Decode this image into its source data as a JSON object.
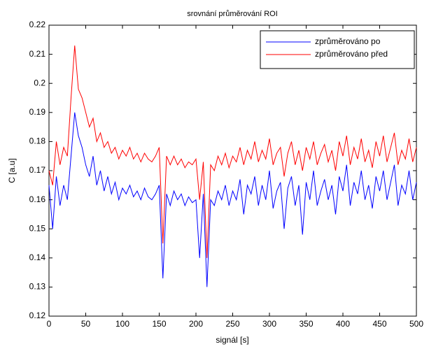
{
  "chart_data": {
    "type": "line",
    "title": "srovnání průměrování ROI",
    "x_label": "signál [s]",
    "y_label": "C [a.u]",
    "xlim": [
      0,
      500
    ],
    "xticks": [
      0,
      50,
      100,
      150,
      200,
      250,
      300,
      350,
      400,
      450,
      500
    ],
    "ylim": [
      0.12,
      0.22
    ],
    "yticks": [
      0.12,
      0.13,
      0.14,
      0.15,
      0.16,
      0.17,
      0.18,
      0.19,
      0.2,
      0.21,
      0.22
    ],
    "legend": "upper right",
    "x": [
      0,
      5,
      10,
      15,
      20,
      25,
      30,
      35,
      40,
      45,
      50,
      55,
      60,
      65,
      70,
      75,
      80,
      85,
      90,
      95,
      100,
      105,
      110,
      115,
      120,
      125,
      130,
      135,
      140,
      145,
      150,
      155,
      160,
      165,
      170,
      175,
      180,
      185,
      190,
      195,
      200,
      205,
      210,
      215,
      220,
      225,
      230,
      235,
      240,
      245,
      250,
      255,
      260,
      265,
      270,
      275,
      280,
      285,
      290,
      295,
      300,
      305,
      310,
      315,
      320,
      325,
      330,
      335,
      340,
      345,
      350,
      355,
      360,
      365,
      370,
      375,
      380,
      385,
      390,
      395,
      400,
      405,
      410,
      415,
      420,
      425,
      430,
      435,
      440,
      445,
      450,
      455,
      460,
      465,
      470,
      475,
      480,
      485,
      490,
      495,
      500
    ],
    "series": [
      {
        "name": "zprůměrováno po",
        "color": "#0000ff",
        "values": [
          0.165,
          0.15,
          0.168,
          0.158,
          0.165,
          0.16,
          0.175,
          0.19,
          0.182,
          0.178,
          0.172,
          0.168,
          0.175,
          0.165,
          0.17,
          0.163,
          0.168,
          0.162,
          0.166,
          0.16,
          0.164,
          0.162,
          0.165,
          0.161,
          0.163,
          0.16,
          0.164,
          0.161,
          0.16,
          0.162,
          0.165,
          0.133,
          0.162,
          0.158,
          0.163,
          0.16,
          0.162,
          0.158,
          0.161,
          0.159,
          0.16,
          0.14,
          0.162,
          0.13,
          0.16,
          0.158,
          0.163,
          0.16,
          0.165,
          0.158,
          0.163,
          0.16,
          0.167,
          0.155,
          0.165,
          0.162,
          0.168,
          0.158,
          0.165,
          0.16,
          0.17,
          0.157,
          0.163,
          0.166,
          0.15,
          0.164,
          0.168,
          0.158,
          0.165,
          0.148,
          0.166,
          0.16,
          0.17,
          0.158,
          0.163,
          0.167,
          0.16,
          0.165,
          0.155,
          0.168,
          0.163,
          0.172,
          0.158,
          0.166,
          0.162,
          0.17,
          0.16,
          0.165,
          0.157,
          0.168,
          0.163,
          0.17,
          0.16,
          0.166,
          0.172,
          0.158,
          0.165,
          0.162,
          0.17,
          0.16,
          0.166
        ]
      },
      {
        "name": "zprůměrováno před",
        "color": "#ff0000",
        "values": [
          0.17,
          0.165,
          0.18,
          0.172,
          0.178,
          0.175,
          0.195,
          0.213,
          0.198,
          0.195,
          0.19,
          0.185,
          0.188,
          0.18,
          0.183,
          0.178,
          0.18,
          0.176,
          0.178,
          0.174,
          0.177,
          0.175,
          0.178,
          0.174,
          0.176,
          0.173,
          0.176,
          0.174,
          0.173,
          0.175,
          0.178,
          0.145,
          0.175,
          0.172,
          0.175,
          0.172,
          0.174,
          0.171,
          0.173,
          0.172,
          0.174,
          0.16,
          0.173,
          0.14,
          0.172,
          0.17,
          0.175,
          0.172,
          0.176,
          0.171,
          0.175,
          0.173,
          0.178,
          0.172,
          0.177,
          0.174,
          0.18,
          0.173,
          0.177,
          0.174,
          0.181,
          0.172,
          0.176,
          0.178,
          0.168,
          0.176,
          0.18,
          0.172,
          0.177,
          0.17,
          0.178,
          0.174,
          0.18,
          0.172,
          0.176,
          0.179,
          0.173,
          0.177,
          0.17,
          0.18,
          0.175,
          0.182,
          0.172,
          0.178,
          0.174,
          0.181,
          0.173,
          0.177,
          0.171,
          0.18,
          0.175,
          0.182,
          0.173,
          0.178,
          0.183,
          0.172,
          0.177,
          0.174,
          0.181,
          0.173,
          0.178
        ]
      }
    ]
  }
}
